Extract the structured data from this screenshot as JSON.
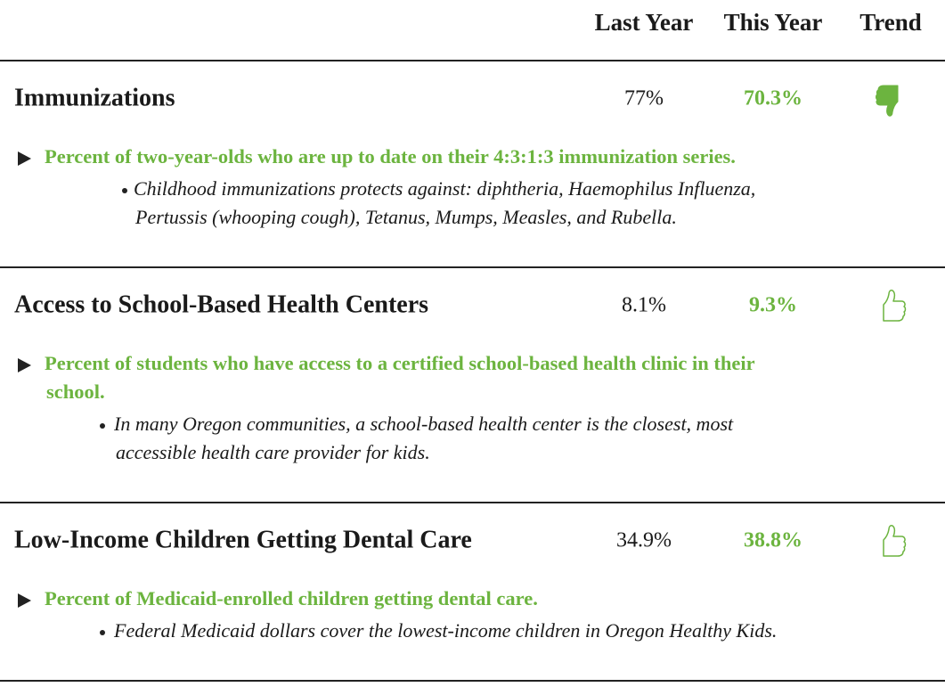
{
  "header": {
    "columns": [
      "Last Year",
      "This Year",
      "Trend"
    ]
  },
  "sections": [
    {
      "title": "Immunizations",
      "last_year": "77%",
      "this_year": "70.3%",
      "trend": "down",
      "description": [
        "Percent of two-year-olds who are up to date on their 4:3:1:3 immunization series."
      ],
      "notes": [
        "Childhood immunizations protects against: diphtheria, Haemophilus Influenza,",
        "Pertussis (whooping cough), Tetanus, Mumps, Measles, and Rubella."
      ]
    },
    {
      "title": "Access to School-Based Health Centers",
      "last_year": "8.1%",
      "this_year": "9.3%",
      "trend": "up",
      "description": [
        "Percent of students who have access to a certified school-based health clinic in their",
        "school."
      ],
      "notes": [
        "In many Oregon communities, a school-based health center is the closest, most",
        "accessible health care provider for kids."
      ]
    },
    {
      "title": "Low-Income Children Getting Dental Care",
      "last_year": "34.9%",
      "this_year": "38.8%",
      "trend": "up",
      "description": [
        "Percent of Medicaid-enrolled children getting dental care."
      ],
      "notes": [
        "Federal Medicaid dollars cover the lowest-income children in Oregon Healthy Kids."
      ]
    }
  ]
}
